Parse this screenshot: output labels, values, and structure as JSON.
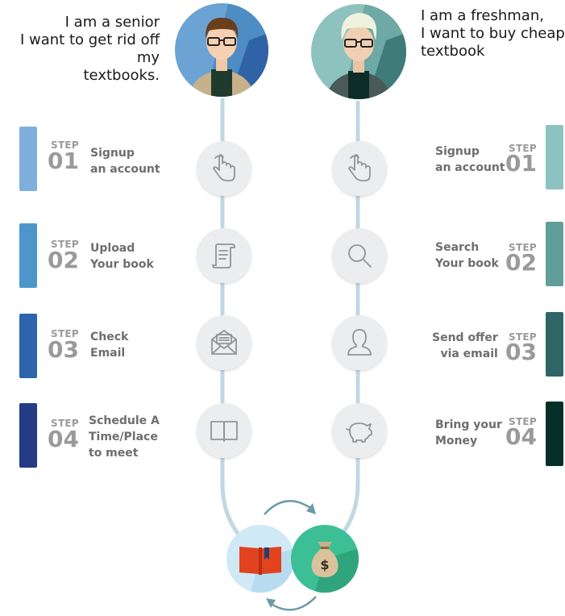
{
  "seller": {
    "quote": "I am a senior\nI want to get rid off my\ntextbooks.",
    "steps": [
      {
        "word": "STEP",
        "number": "01",
        "label": "Signup\nan account",
        "color": "#7fb0dd",
        "icon": "hand-pointer-icon"
      },
      {
        "word": "STEP",
        "number": "02",
        "label": "Upload\nYour book",
        "color": "#4d96cb",
        "icon": "scroll-document-icon"
      },
      {
        "word": "STEP",
        "number": "03",
        "label": "Check\nEmail",
        "color": "#2d64ae",
        "icon": "envelope-open-icon"
      },
      {
        "word": "STEP",
        "number": "04",
        "label": "Schedule A\nTime/Place\nto meet",
        "color": "#253b85",
        "icon": "open-book-icon"
      }
    ]
  },
  "buyer": {
    "quote": "I am a freshman,\nI want to buy cheap\ntextbook",
    "steps": [
      {
        "word": "STEP",
        "number": "01",
        "label": "Signup\nan account",
        "color": "#8cc3c2",
        "icon": "hand-pointer-icon"
      },
      {
        "word": "STEP",
        "number": "02",
        "label": "Search\nYour book",
        "color": "#609e9b",
        "icon": "magnifier-icon"
      },
      {
        "word": "STEP",
        "number": "03",
        "label": "Send offer\nvia email",
        "color": "#2f6665",
        "icon": "user-silhouette-icon"
      },
      {
        "word": "STEP",
        "number": "04",
        "label": "Bring your\nMoney",
        "color": "#05302a",
        "icon": "piggy-bank-icon"
      }
    ]
  },
  "exchange": {
    "book_icon": "red-book-icon",
    "money_icon": "money-bag-icon",
    "money_symbol": "$"
  }
}
